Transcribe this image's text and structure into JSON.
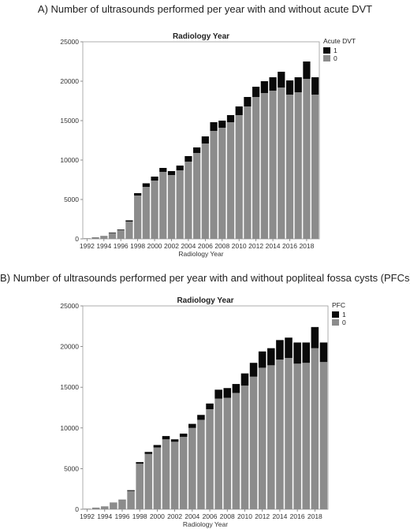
{
  "chart_data": [
    {
      "type": "bar",
      "stacked": true,
      "heading": "A) Number of ultrasounds performed per year with and without acute DVT",
      "title": "Radiology Year",
      "xlabel": "Radiology Year",
      "ylabel": "",
      "ylim": [
        0,
        25000
      ],
      "yticks": [
        0,
        5000,
        10000,
        15000,
        20000,
        25000
      ],
      "xtick_labels": [
        "1992",
        "1994",
        "1996",
        "1998",
        "2000",
        "2002",
        "2004",
        "2006",
        "2008",
        "2010",
        "2012",
        "2014",
        "2016",
        "2018"
      ],
      "legend_title": "Acute DVT",
      "legend_position": "top-right",
      "grid": false,
      "colors": {
        "1": "#0a0a0a",
        "0": "#8c8c8c"
      },
      "categories": [
        1992,
        1993,
        1994,
        1995,
        1996,
        1997,
        1998,
        1999,
        2000,
        2001,
        2002,
        2003,
        2004,
        2005,
        2006,
        2007,
        2008,
        2009,
        2010,
        2011,
        2012,
        2013,
        2014,
        2015,
        2016,
        2017,
        2018,
        2019
      ],
      "series": [
        {
          "name": "0",
          "values": [
            60,
            180,
            300,
            750,
            1100,
            2200,
            5500,
            6600,
            7400,
            8500,
            8100,
            8700,
            9800,
            10900,
            12100,
            13700,
            14100,
            14800,
            15700,
            16800,
            18000,
            18500,
            18800,
            19200,
            18300,
            18600,
            20300,
            18300
          ]
        },
        {
          "name": "1",
          "values": [
            10,
            20,
            40,
            60,
            80,
            150,
            300,
            450,
            500,
            500,
            500,
            600,
            700,
            700,
            900,
            1100,
            900,
            900,
            1100,
            1200,
            1300,
            1500,
            1700,
            2000,
            1800,
            1900,
            2200,
            2200
          ]
        }
      ]
    },
    {
      "type": "bar",
      "stacked": true,
      "heading": "B) Number of ultrasounds performed per year with and without popliteal fossa cysts (PFCs)",
      "title": "Radiology Year",
      "xlabel": "Radiology Year",
      "ylabel": "",
      "ylim": [
        0,
        25000
      ],
      "yticks": [
        0,
        5000,
        10000,
        15000,
        20000,
        25000
      ],
      "xtick_labels": [
        "1992",
        "1994",
        "1996",
        "1998",
        "2000",
        "2002",
        "2004",
        "2006",
        "2008",
        "2010",
        "2012",
        "2014",
        "2016",
        "2018"
      ],
      "legend_title": "PFC",
      "legend_position": "top-right",
      "grid": false,
      "colors": {
        "1": "#0a0a0a",
        "0": "#8c8c8c"
      },
      "categories": [
        1992,
        1993,
        1994,
        1995,
        1996,
        1997,
        1998,
        1999,
        2000,
        2001,
        2002,
        2003,
        2004,
        2005,
        2006,
        2007,
        2008,
        2009,
        2010,
        2011,
        2012,
        2013,
        2014,
        2015,
        2016,
        2017,
        2018,
        2019
      ],
      "series": [
        {
          "name": "0",
          "values": [
            60,
            190,
            310,
            780,
            1150,
            2250,
            5600,
            6800,
            7600,
            8600,
            8300,
            8900,
            10000,
            11000,
            12300,
            13600,
            13700,
            14300,
            15200,
            16300,
            17400,
            17700,
            18400,
            18600,
            17900,
            18000,
            19800,
            18100
          ]
        },
        {
          "name": "1",
          "values": [
            10,
            10,
            30,
            30,
            30,
            100,
            200,
            250,
            300,
            400,
            300,
            400,
            500,
            600,
            700,
            1100,
            1200,
            1100,
            1500,
            1700,
            2000,
            2100,
            2400,
            2500,
            2600,
            2500,
            2600,
            2400
          ]
        }
      ]
    }
  ]
}
